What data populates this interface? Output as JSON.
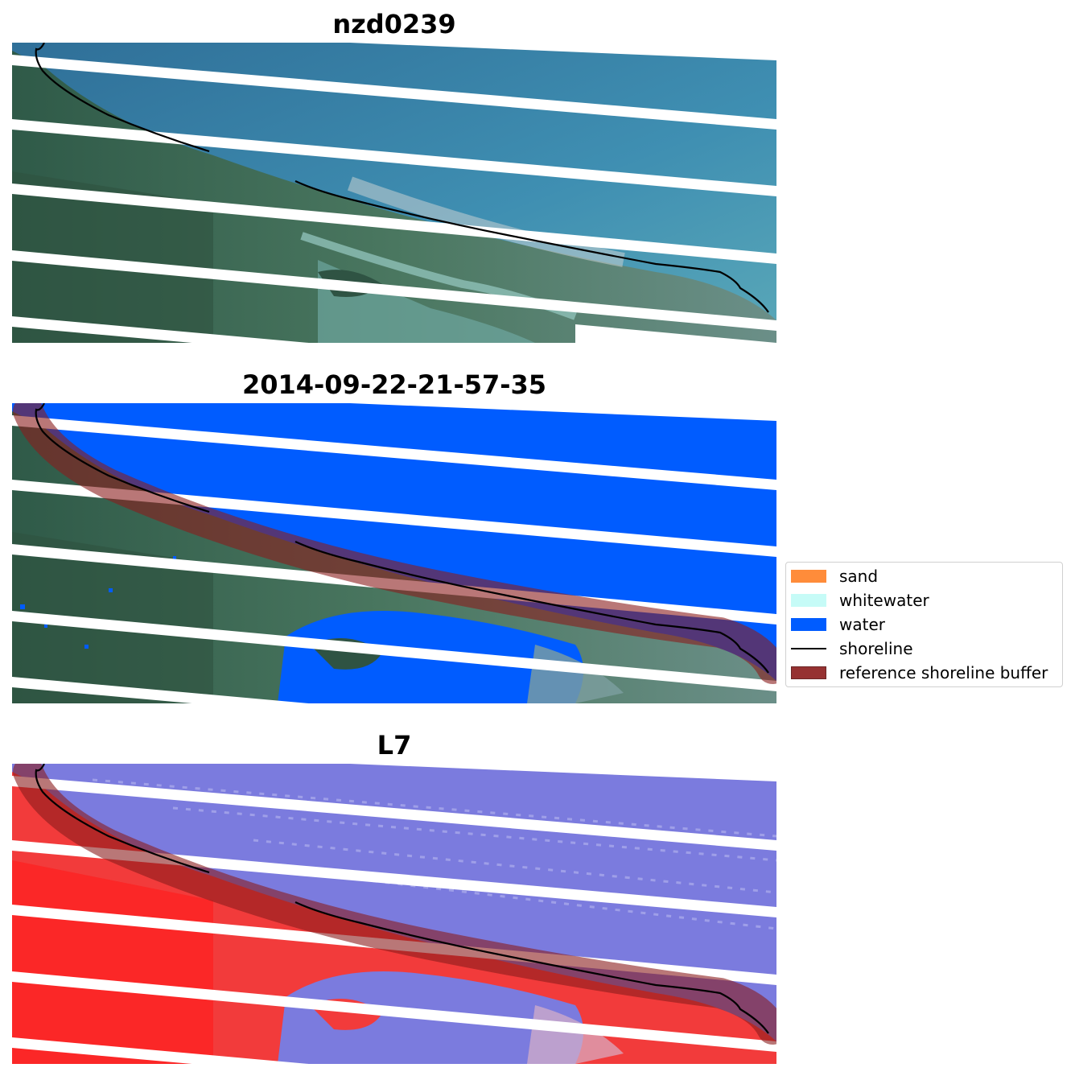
{
  "panels": [
    {
      "title": "nzd0239"
    },
    {
      "title": "2014-09-22-21-57-35"
    },
    {
      "title": "L7"
    }
  ],
  "legend": {
    "items": [
      {
        "label": "sand",
        "color": "#ff8c3a"
      },
      {
        "label": "whitewater",
        "color": "#c6fbf7"
      },
      {
        "label": "water",
        "color": "#005cff"
      },
      {
        "label": "shoreline",
        "color": "#000000"
      },
      {
        "label": "reference shoreline buffer",
        "color": "#8b1c1c"
      }
    ]
  },
  "colors": {
    "ocean": "#3f8fb0",
    "land": "#3f6a55",
    "water_class": "#005cff",
    "index_water": "#7b7bde",
    "index_land": "#f23b3b",
    "buffer": "#8b1c1c",
    "shoreline": "#000000"
  }
}
